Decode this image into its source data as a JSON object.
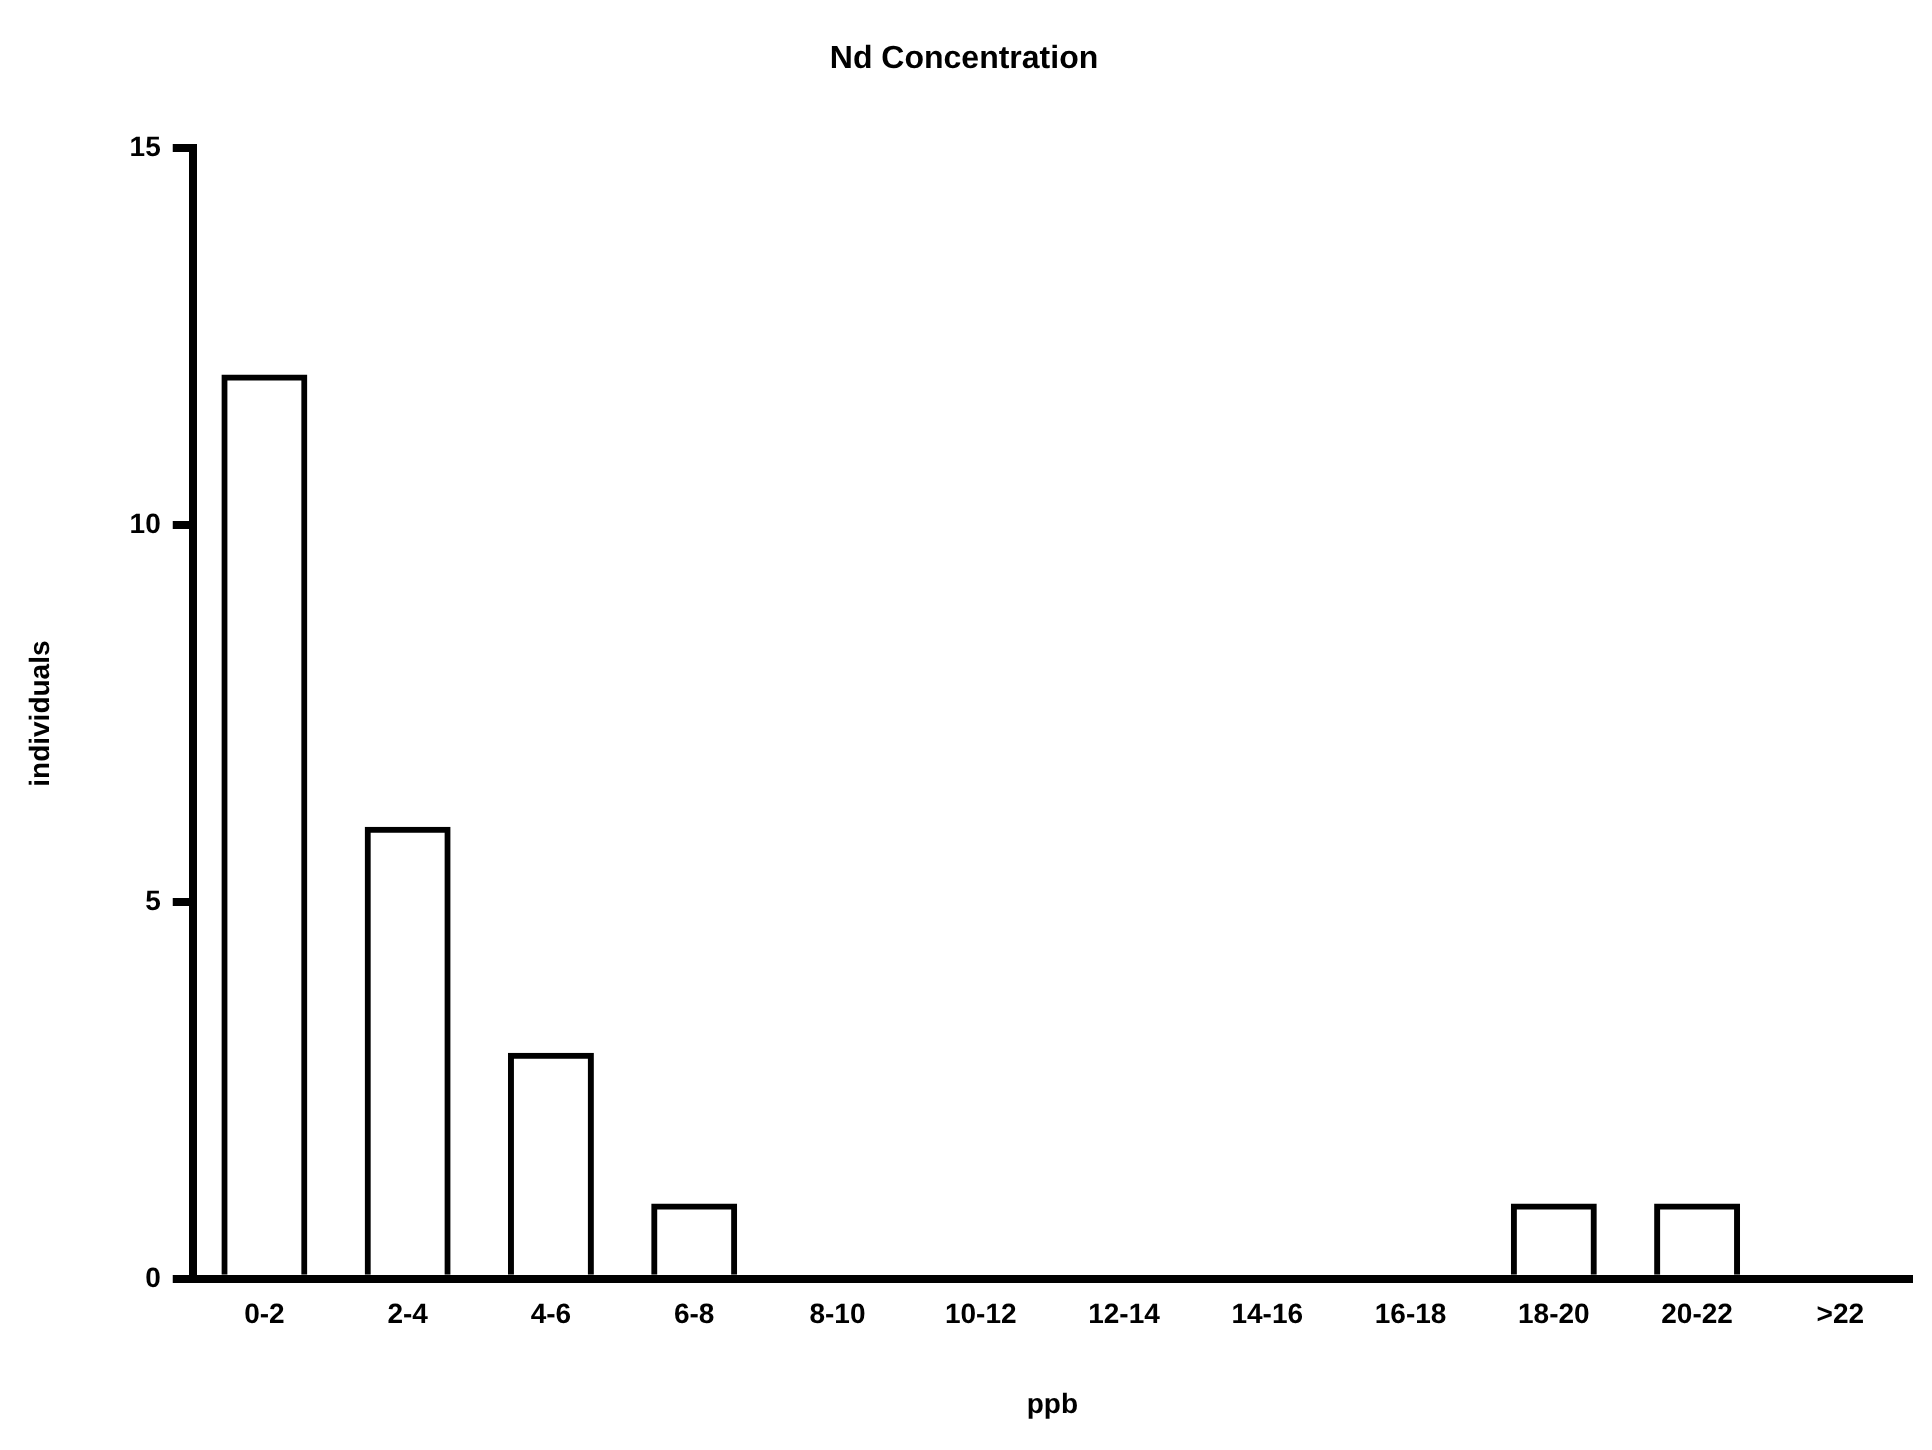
{
  "chart_data": {
    "type": "bar",
    "title": "Nd Concentration",
    "xlabel": "ppb",
    "ylabel": "individuals",
    "categories": [
      "0-2",
      "2-4",
      "4-6",
      "6-8",
      "8-10",
      "10-12",
      "12-14",
      "14-16",
      "16-18",
      "18-20",
      "20-22",
      ">22"
    ],
    "values": [
      12,
      6,
      3,
      1,
      0,
      0,
      0,
      0,
      0,
      1,
      1,
      0
    ],
    "color": "#000000",
    "ylim": [
      0,
      15
    ],
    "yticks": [
      0,
      5,
      10,
      15
    ],
    "grid": false,
    "legend": false
  }
}
